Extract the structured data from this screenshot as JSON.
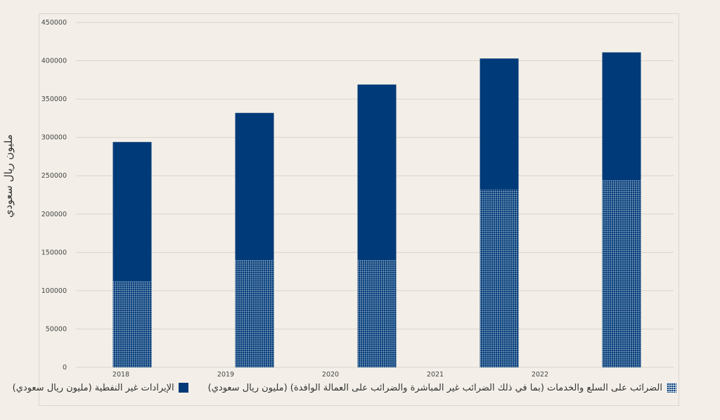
{
  "chart_data": {
    "type": "bar",
    "stacked": true,
    "categories": [
      "2018",
      "2019",
      "2020",
      "2021",
      "2022"
    ],
    "series": [
      {
        "name": "الضرائب على السلع والخدمات (بما في ذلك الضرائب غير المباشرة والضرائب على العمالة الوافدة) (مليون ريال سعودي)",
        "values": [
          112000,
          140000,
          140000,
          232000,
          244000
        ],
        "color": "#003a78",
        "pattern": "grid"
      },
      {
        "name": "الإيرادات غير النفطية (مليون ريال سعودي)",
        "values": [
          182000,
          192000,
          229000,
          171000,
          167000
        ],
        "color": "#003a78",
        "pattern": "solid"
      }
    ],
    "ylabel": "مليون ريال سعودي",
    "xlabel": "",
    "ylim": [
      0,
      450000
    ],
    "yticks": [
      0,
      50000,
      100000,
      150000,
      200000,
      250000,
      300000,
      350000,
      400000,
      450000
    ],
    "grid": true,
    "legend": "bottom"
  }
}
